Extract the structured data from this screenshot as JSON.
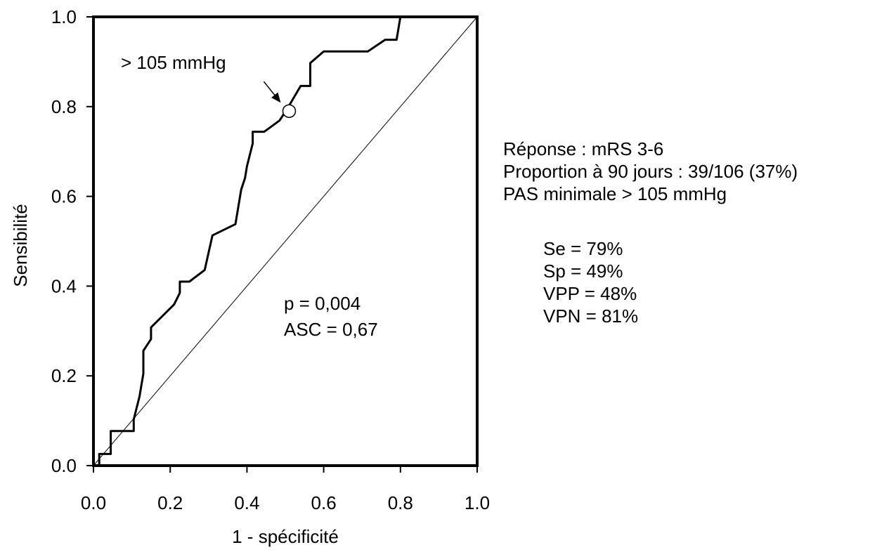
{
  "chart_data": {
    "type": "line",
    "xlabel": "1 - spécificité",
    "ylabel": "Sensibilité",
    "xlim": [
      0,
      1
    ],
    "ylim": [
      0,
      1
    ],
    "xticks": [
      "0.0",
      "0.2",
      "0.4",
      "0.6",
      "0.8",
      "1.0"
    ],
    "yticks": [
      "0.0",
      "0.2",
      "0.4",
      "0.6",
      "0.8",
      "1.0"
    ],
    "grid": false,
    "series": [
      {
        "style": "roc-curve",
        "points": [
          [
            0.0,
            0.0
          ],
          [
            0.015,
            0.0
          ],
          [
            0.015,
            0.026
          ],
          [
            0.045,
            0.026
          ],
          [
            0.045,
            0.077
          ],
          [
            0.105,
            0.077
          ],
          [
            0.105,
            0.103
          ],
          [
            0.12,
            0.154
          ],
          [
            0.13,
            0.205
          ],
          [
            0.13,
            0.256
          ],
          [
            0.15,
            0.282
          ],
          [
            0.15,
            0.308
          ],
          [
            0.21,
            0.359
          ],
          [
            0.225,
            0.385
          ],
          [
            0.225,
            0.41
          ],
          [
            0.25,
            0.41
          ],
          [
            0.29,
            0.436
          ],
          [
            0.31,
            0.513
          ],
          [
            0.37,
            0.538
          ],
          [
            0.385,
            0.615
          ],
          [
            0.395,
            0.641
          ],
          [
            0.4,
            0.667
          ],
          [
            0.415,
            0.718
          ],
          [
            0.415,
            0.744
          ],
          [
            0.445,
            0.744
          ],
          [
            0.485,
            0.769
          ],
          [
            0.505,
            0.795
          ],
          [
            0.54,
            0.846
          ],
          [
            0.565,
            0.846
          ],
          [
            0.565,
            0.897
          ],
          [
            0.6,
            0.923
          ],
          [
            0.715,
            0.923
          ],
          [
            0.76,
            0.949
          ],
          [
            0.79,
            0.949
          ],
          [
            0.8,
            1.0
          ]
        ]
      },
      {
        "style": "reference-diagonal",
        "points": [
          [
            0,
            0
          ],
          [
            1,
            1
          ]
        ]
      }
    ],
    "highlight_point": [
      0.51,
      0.79
    ],
    "annotations": {
      "threshold_label": "> 105 mmHg",
      "p_value": "p = 0,004",
      "auc": "ASC = 0,67"
    }
  },
  "side_panel": {
    "lines": [
      "Réponse : mRS 3-6",
      "Proportion à 90 jours : 39/106 (37%)",
      "PAS minimale > 105 mmHg"
    ],
    "metrics": [
      "Se = 79%",
      "Sp = 49%",
      "VPP = 48%",
      "VPN = 81%"
    ]
  }
}
